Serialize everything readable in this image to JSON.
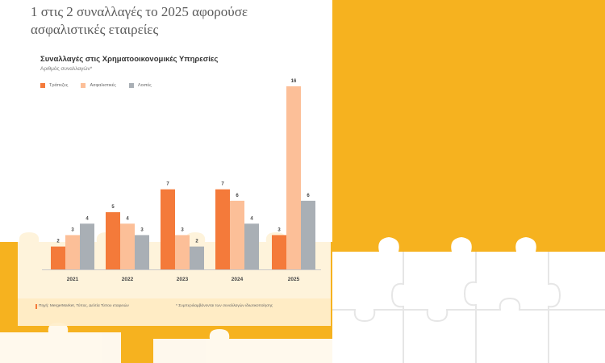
{
  "headline": "1 στις 2 συναλλαγές το 2025 αφορούσε ασφαλιστικές εταιρείες",
  "footer": {
    "source": "Πηγή: MergerMarket, Τύπος, Δελτία Τύπου εταιρειών",
    "note": "* Συμπεριλαμβάνονται των συναλλαγών ιδιωτικοποίησης"
  },
  "colors": {
    "background": "#f6b21f",
    "banks": "#f47a3a",
    "insurance": "#fcbf98",
    "other": "#a9afb5"
  },
  "chart_data": {
    "type": "bar",
    "title": "Συναλλαγές στις Χρηματοοικονομικές Υπηρεσίες",
    "subtitle": "Αριθμός συναλλαγών*",
    "categories": [
      "2021",
      "2022",
      "2023",
      "2024",
      "2025"
    ],
    "series": [
      {
        "name": "Τράπεζες",
        "values": [
          2,
          5,
          7,
          7,
          3
        ]
      },
      {
        "name": "Ασφαλιστικές",
        "values": [
          3,
          4,
          3,
          6,
          16
        ]
      },
      {
        "name": "Λοιπές",
        "values": [
          4,
          3,
          2,
          4,
          6
        ]
      }
    ],
    "ylim": [
      0,
      16
    ],
    "grid": false,
    "legend_position": "top-left",
    "data_labels": true
  }
}
